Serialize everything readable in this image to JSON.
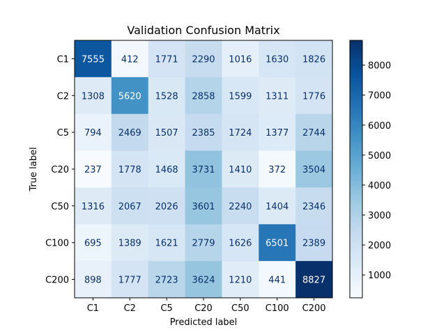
{
  "chart_data": {
    "type": "heatmap",
    "title": "Validation Confusion Matrix",
    "xlabel": "Predicted label",
    "ylabel": "True label",
    "x_categories": [
      "C1",
      "C2",
      "C5",
      "C20",
      "C50",
      "C100",
      "C200"
    ],
    "y_categories": [
      "C1",
      "C2",
      "C5",
      "C20",
      "C50",
      "C100",
      "C200"
    ],
    "values": [
      [
        7555,
        412,
        1771,
        2290,
        1016,
        1630,
        1826
      ],
      [
        1308,
        5620,
        1528,
        2858,
        1599,
        1311,
        1776
      ],
      [
        794,
        2469,
        1507,
        2385,
        1724,
        1377,
        2744
      ],
      [
        237,
        1778,
        1468,
        3731,
        1410,
        372,
        3504
      ],
      [
        1316,
        2067,
        2026,
        3601,
        2240,
        1404,
        2346
      ],
      [
        695,
        1389,
        1621,
        2779,
        1626,
        6501,
        2389
      ],
      [
        898,
        1777,
        2723,
        3624,
        1210,
        441,
        8827
      ]
    ],
    "colormap": "Blues",
    "colorbar": {
      "vmin": 237,
      "vmax": 8827,
      "ticks": [
        1000,
        2000,
        3000,
        4000,
        5000,
        6000,
        7000,
        8000
      ]
    },
    "grid": false
  }
}
